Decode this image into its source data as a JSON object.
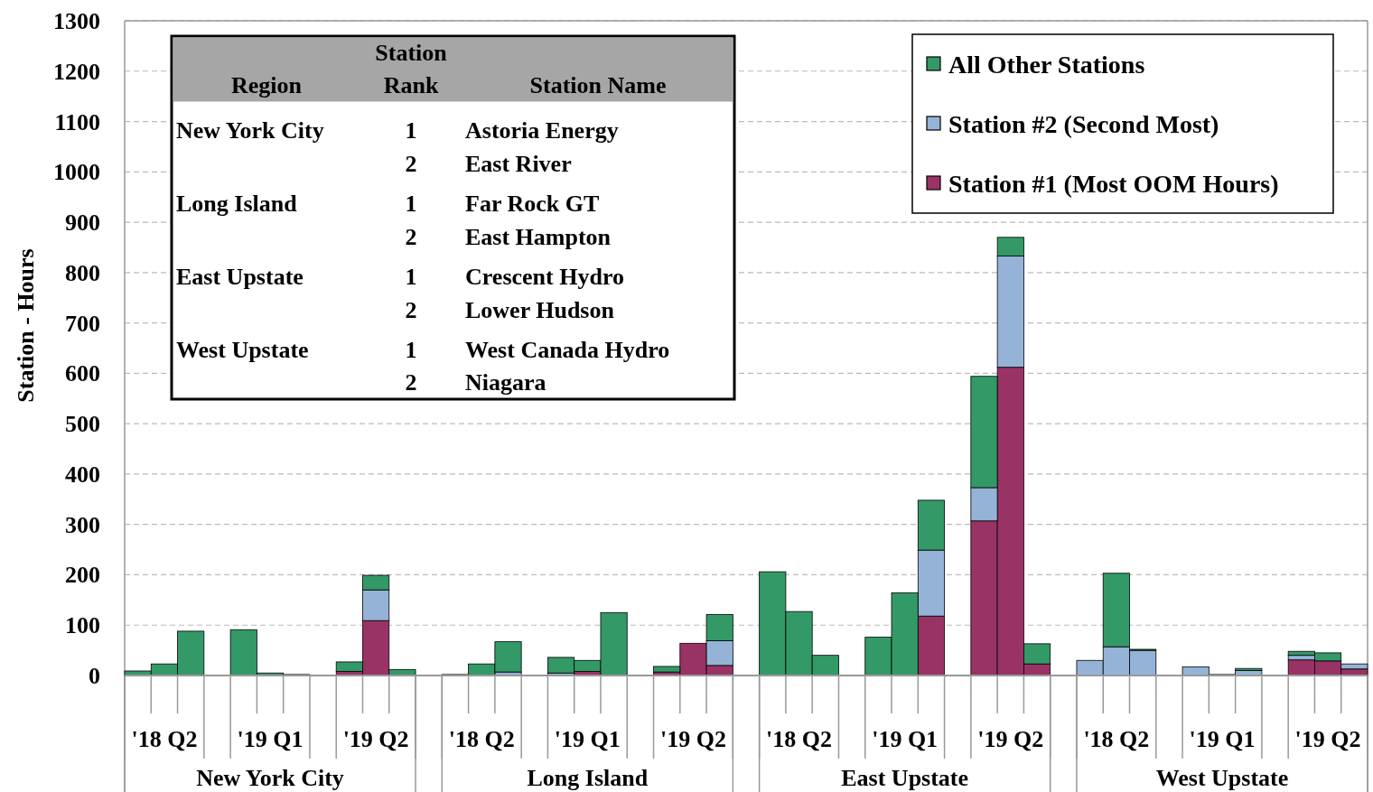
{
  "chart_data": [
    {
      "type": "bar",
      "stacked": true,
      "ylabel": "Station - Hours",
      "categories": [
        null,
        "'18 Q2",
        null,
        null,
        null,
        "'19 Q1",
        null,
        null,
        null,
        "'19 Q2",
        null,
        null,
        null,
        "'18 Q2",
        null,
        null,
        null,
        "'19 Q1",
        null,
        null,
        null,
        "'19 Q2",
        null,
        null,
        null,
        "'18 Q2",
        null,
        null,
        null,
        "'19 Q1",
        null,
        null,
        null,
        "'19 Q2",
        null,
        null,
        null,
        "'18 Q2",
        null,
        null,
        null,
        "'19 Q1",
        null,
        null,
        null,
        "'19 Q2",
        null
      ],
      "series": [
        {
          "name": "Station #1 (Most OOM Hours)",
          "color": "#993366",
          "values": [
            null,
            null,
            null,
            null,
            null,
            null,
            null,
            null,
            8,
            109,
            null,
            null,
            null,
            null,
            null,
            null,
            null,
            8,
            null,
            null,
            7,
            64,
            20,
            null,
            null,
            null,
            null,
            null,
            null,
            null,
            118,
            null,
            307,
            612,
            23,
            null,
            null,
            null,
            null,
            null,
            null,
            null,
            null,
            null,
            31,
            29,
            13
          ]
        },
        {
          "name": "Station #2 (Second Most)",
          "color": "#95b3d7",
          "values": [
            null,
            null,
            null,
            null,
            null,
            null,
            null,
            null,
            null,
            61,
            null,
            null,
            null,
            null,
            7,
            null,
            5,
            null,
            null,
            null,
            null,
            null,
            49,
            null,
            null,
            null,
            null,
            null,
            null,
            null,
            131,
            null,
            66,
            221,
            null,
            null,
            30,
            57,
            50,
            null,
            17,
            2,
            10,
            null,
            9,
            null,
            10
          ]
        },
        {
          "name": "All Other Stations",
          "color": "#339966",
          "values": [
            9,
            23,
            88,
            null,
            91,
            5,
            2,
            null,
            19,
            29,
            12,
            null,
            2,
            23,
            60,
            null,
            31,
            22,
            125,
            null,
            11,
            null,
            52,
            null,
            206,
            127,
            40,
            null,
            76,
            164,
            99,
            null,
            221,
            37,
            40,
            null,
            null,
            146,
            2,
            null,
            null,
            null,
            4,
            null,
            8,
            16,
            null
          ]
        }
      ],
      "ylim": [
        0,
        1300
      ],
      "yticks": [
        0,
        100,
        200,
        300,
        400,
        500,
        600,
        700,
        800,
        900,
        1000,
        1100,
        1200,
        1300
      ],
      "grid": "y",
      "legend": "top right",
      "annotations": [
        "New York City",
        "Long Island",
        "East Upstate",
        "West Upstate"
      ]
    },
    {
      "type": "other",
      "annotations": [
        "Region",
        "Station Rank",
        "Station Name",
        "New York City",
        "1",
        "Astoria Energy",
        "2",
        "East River",
        "Long Island",
        "1",
        "Far Rock GT",
        "2",
        "East Hampton",
        "East Upstate",
        "1",
        "Crescent Hydro",
        "2",
        "Lower Hudson",
        "West Upstate",
        "1",
        "West Canada Hydro",
        "2",
        "Niagara"
      ]
    }
  ]
}
